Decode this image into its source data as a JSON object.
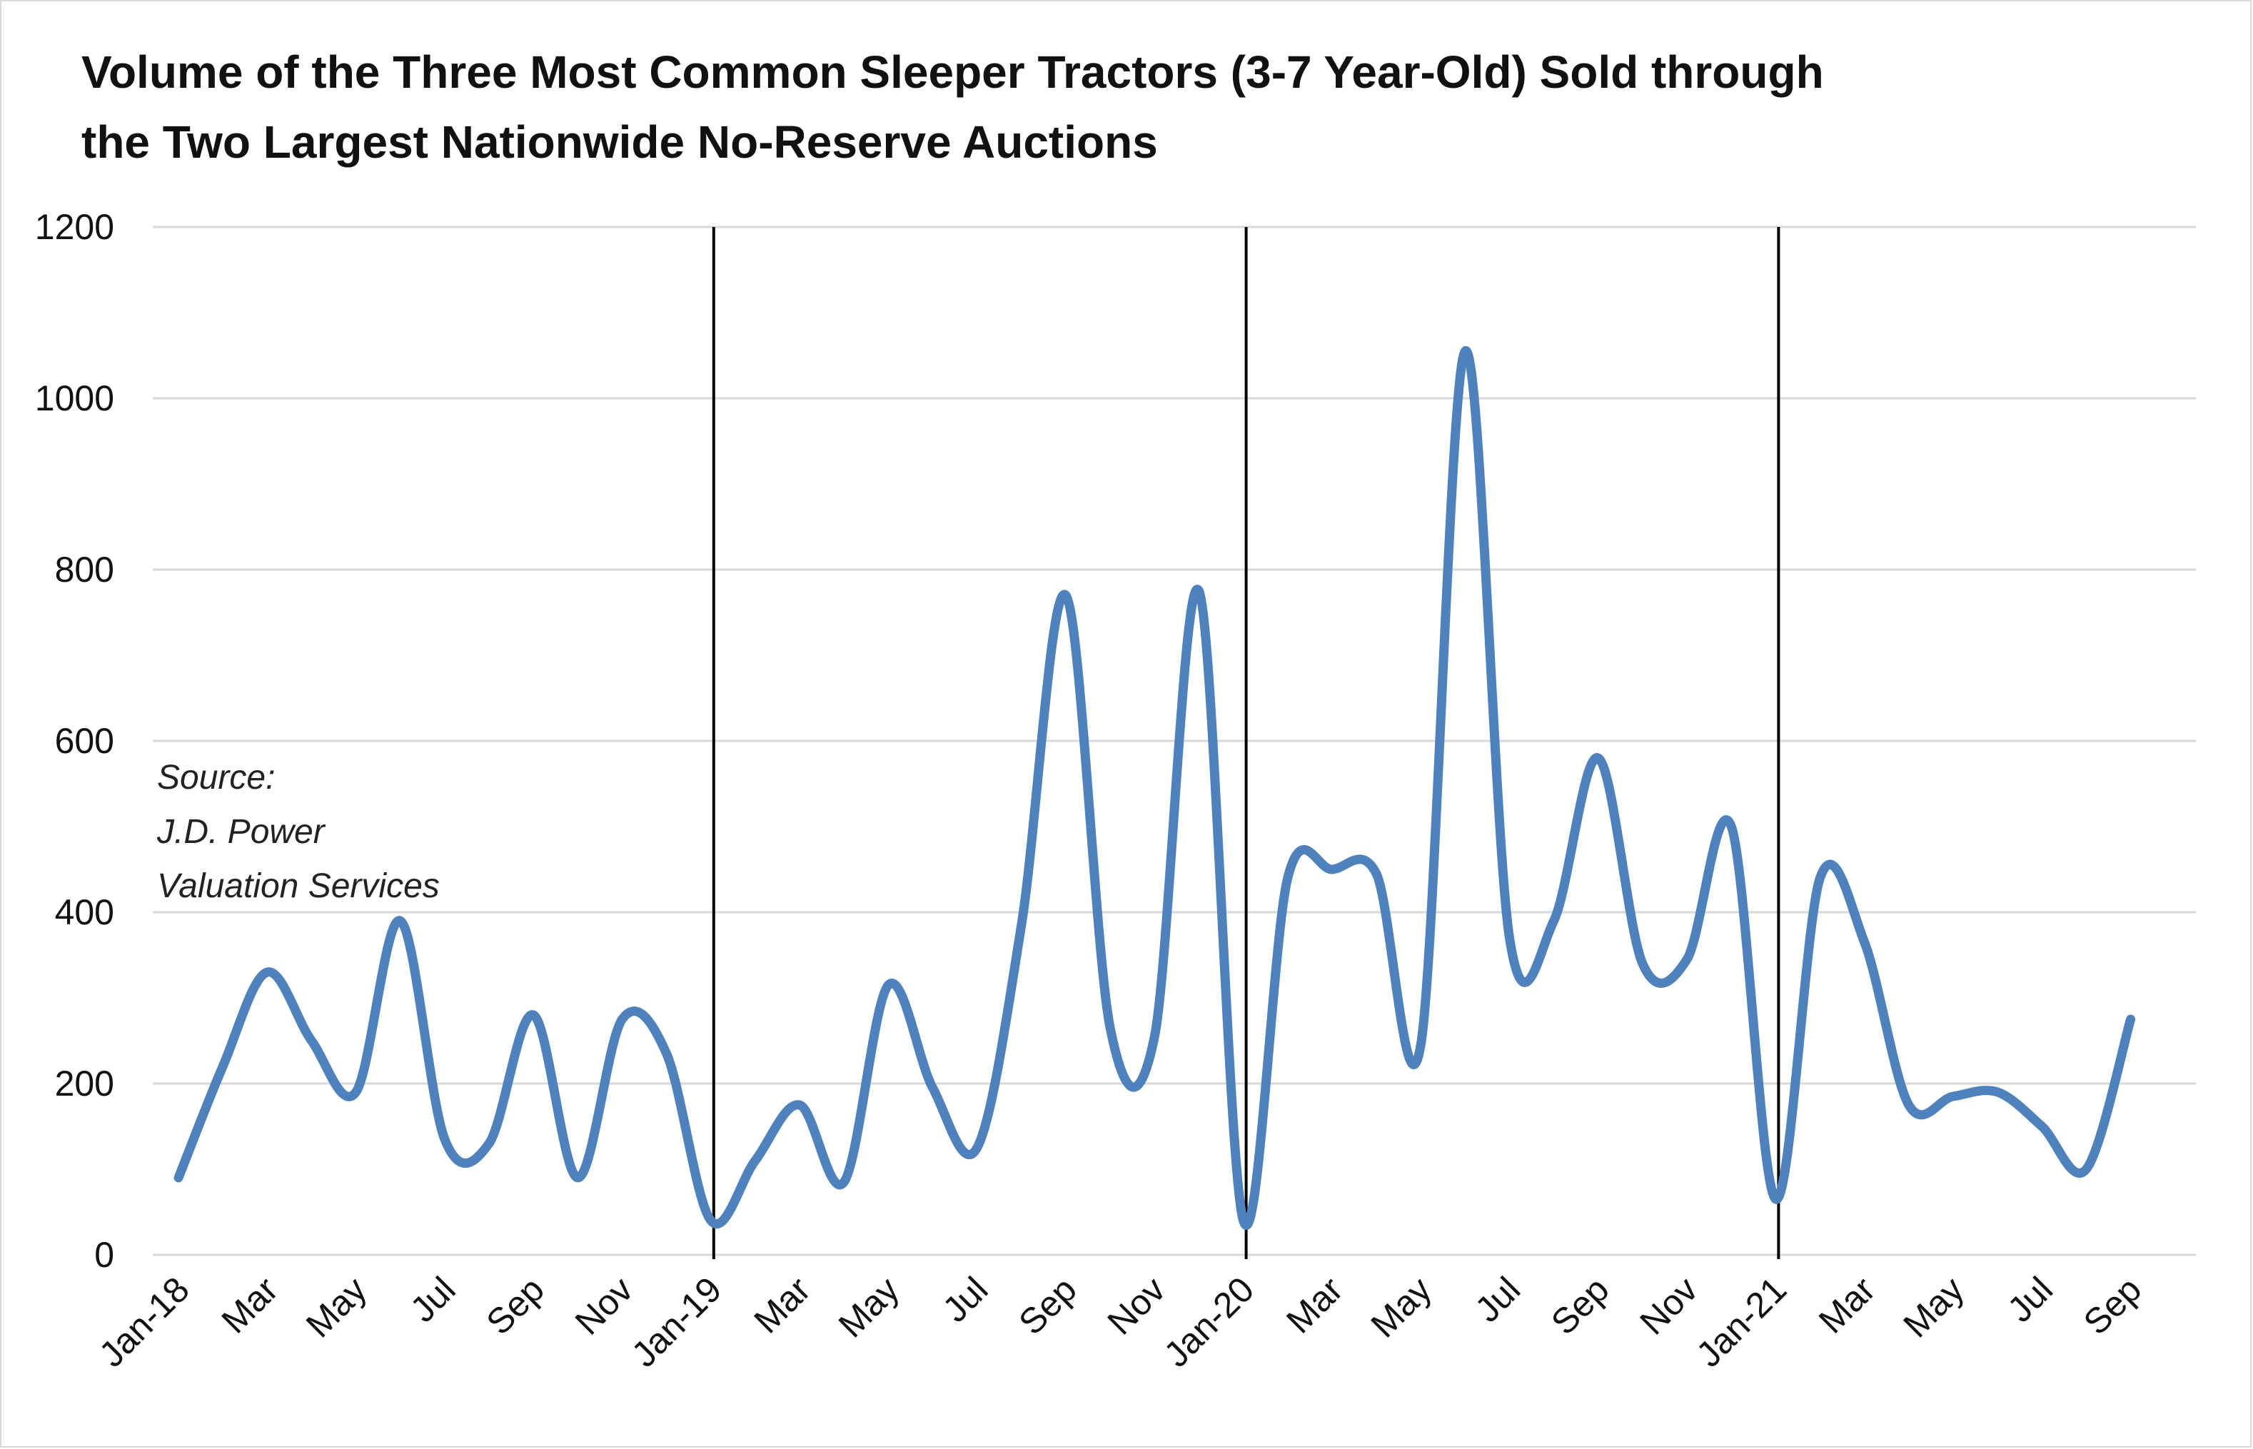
{
  "title": {
    "line1": "Volume of the Three Most Common Sleeper Tractors (3-7 Year-Old) Sold through",
    "line2": "the Two Largest Nationwide No-Reserve Auctions"
  },
  "source_note": {
    "line1": "Source:",
    "line2": "J.D. Power",
    "line3": "Valuation Services"
  },
  "colors": {
    "series": "#4f81bd",
    "gridline": "#d9d9d9",
    "year_divider": "#000000",
    "text": "#111111"
  },
  "chart_data": {
    "type": "line",
    "title": "Volume of the Three Most Common Sleeper Tractors (3-7 Year-Old) Sold through the Two Largest Nationwide No-Reserve Auctions",
    "xlabel": "",
    "ylabel": "",
    "ylim": [
      0,
      1200
    ],
    "yticks": [
      0,
      200,
      400,
      600,
      800,
      1000,
      1200
    ],
    "grid": "horizontal",
    "legend": "none",
    "smooth": true,
    "x": [
      "Jan-18",
      "Feb-18",
      "Mar-18",
      "Apr-18",
      "May-18",
      "Jun-18",
      "Jul-18",
      "Aug-18",
      "Sep-18",
      "Oct-18",
      "Nov-18",
      "Dec-18",
      "Jan-19",
      "Feb-19",
      "Mar-19",
      "Apr-19",
      "May-19",
      "Jun-19",
      "Jul-19",
      "Aug-19",
      "Sep-19",
      "Oct-19",
      "Nov-19",
      "Dec-19",
      "Jan-20",
      "Feb-20",
      "Mar-20",
      "Apr-20",
      "May-20",
      "Jun-20",
      "Jul-20",
      "Aug-20",
      "Sep-20",
      "Oct-20",
      "Nov-20",
      "Dec-20",
      "Jan-21",
      "Feb-21",
      "Mar-21",
      "Apr-21",
      "May-21",
      "Jun-21",
      "Jul-21",
      "Aug-21",
      "Sep-21"
    ],
    "x_tick_labels": [
      "Jan-18",
      "Mar",
      "May",
      "Jul",
      "Sep",
      "Nov",
      "Jan-19",
      "Mar",
      "May",
      "Jul",
      "Sep",
      "Nov",
      "Jan-20",
      "Mar",
      "May",
      "Jul",
      "Sep",
      "Nov",
      "Jan-21",
      "Mar",
      "May",
      "Jul",
      "Sep"
    ],
    "year_dividers": [
      "Jan-19",
      "Jan-20",
      "Jan-21"
    ],
    "series": [
      {
        "values": [
          90,
          220,
          330,
          250,
          190,
          390,
          135,
          130,
          280,
          90,
          275,
          235,
          40,
          110,
          175,
          85,
          315,
          195,
          125,
          385,
          770,
          265,
          255,
          775,
          40,
          440,
          450,
          445,
          245,
          1055,
          370,
          390,
          580,
          340,
          345,
          500,
          65,
          440,
          365,
          175,
          185,
          190,
          150,
          100,
          275
        ]
      }
    ]
  }
}
